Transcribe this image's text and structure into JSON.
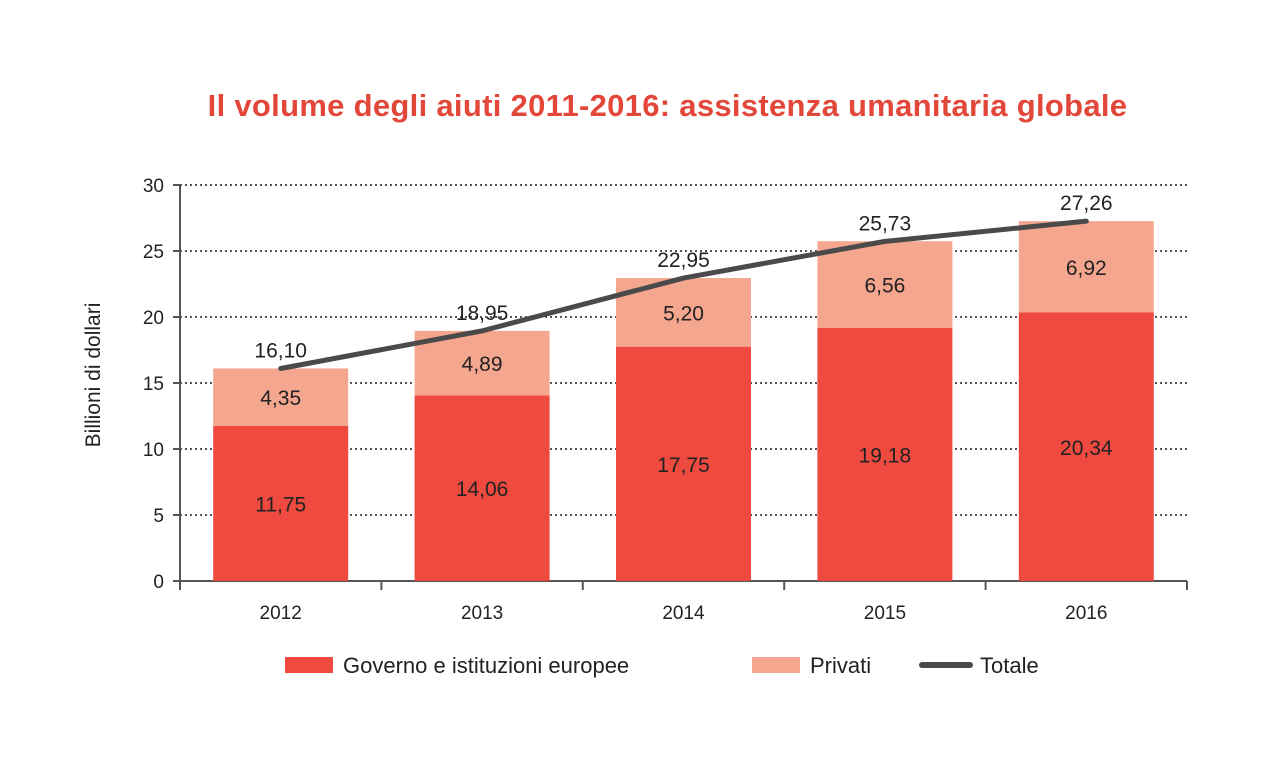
{
  "chart_data": {
    "type": "bar",
    "stacked": true,
    "title": "Il volume degli aiuti 2011-2016: assistenza umanitaria globale",
    "xlabel": "",
    "ylabel": "Billioni di dollari",
    "ylim": [
      0,
      30
    ],
    "yticks": [
      0,
      5,
      10,
      15,
      20,
      25,
      30
    ],
    "grid": true,
    "legend_position": "bottom",
    "categories": [
      "2012",
      "2013",
      "2014",
      "2015",
      "2016"
    ],
    "series": [
      {
        "name": "Governo e istituzioni europee",
        "type": "bar",
        "color": "#ee4a3f",
        "values": [
          11.75,
          14.06,
          17.75,
          19.18,
          20.34
        ],
        "labels": [
          "11,75",
          "14,06",
          "17,75",
          "19,18",
          "20,34"
        ]
      },
      {
        "name": "Privati",
        "type": "bar",
        "color": "#f5a68e",
        "values": [
          4.35,
          4.89,
          5.2,
          6.56,
          6.92
        ],
        "labels": [
          "4,35",
          "4,89",
          "5,20",
          "6,56",
          "6,92"
        ]
      },
      {
        "name": "Totale",
        "type": "line",
        "color": "#4a4a4a",
        "values": [
          16.1,
          18.95,
          22.95,
          25.73,
          27.26
        ],
        "labels": [
          "16,10",
          "18,95",
          "22,95",
          "25,73",
          "27,26"
        ]
      }
    ]
  }
}
